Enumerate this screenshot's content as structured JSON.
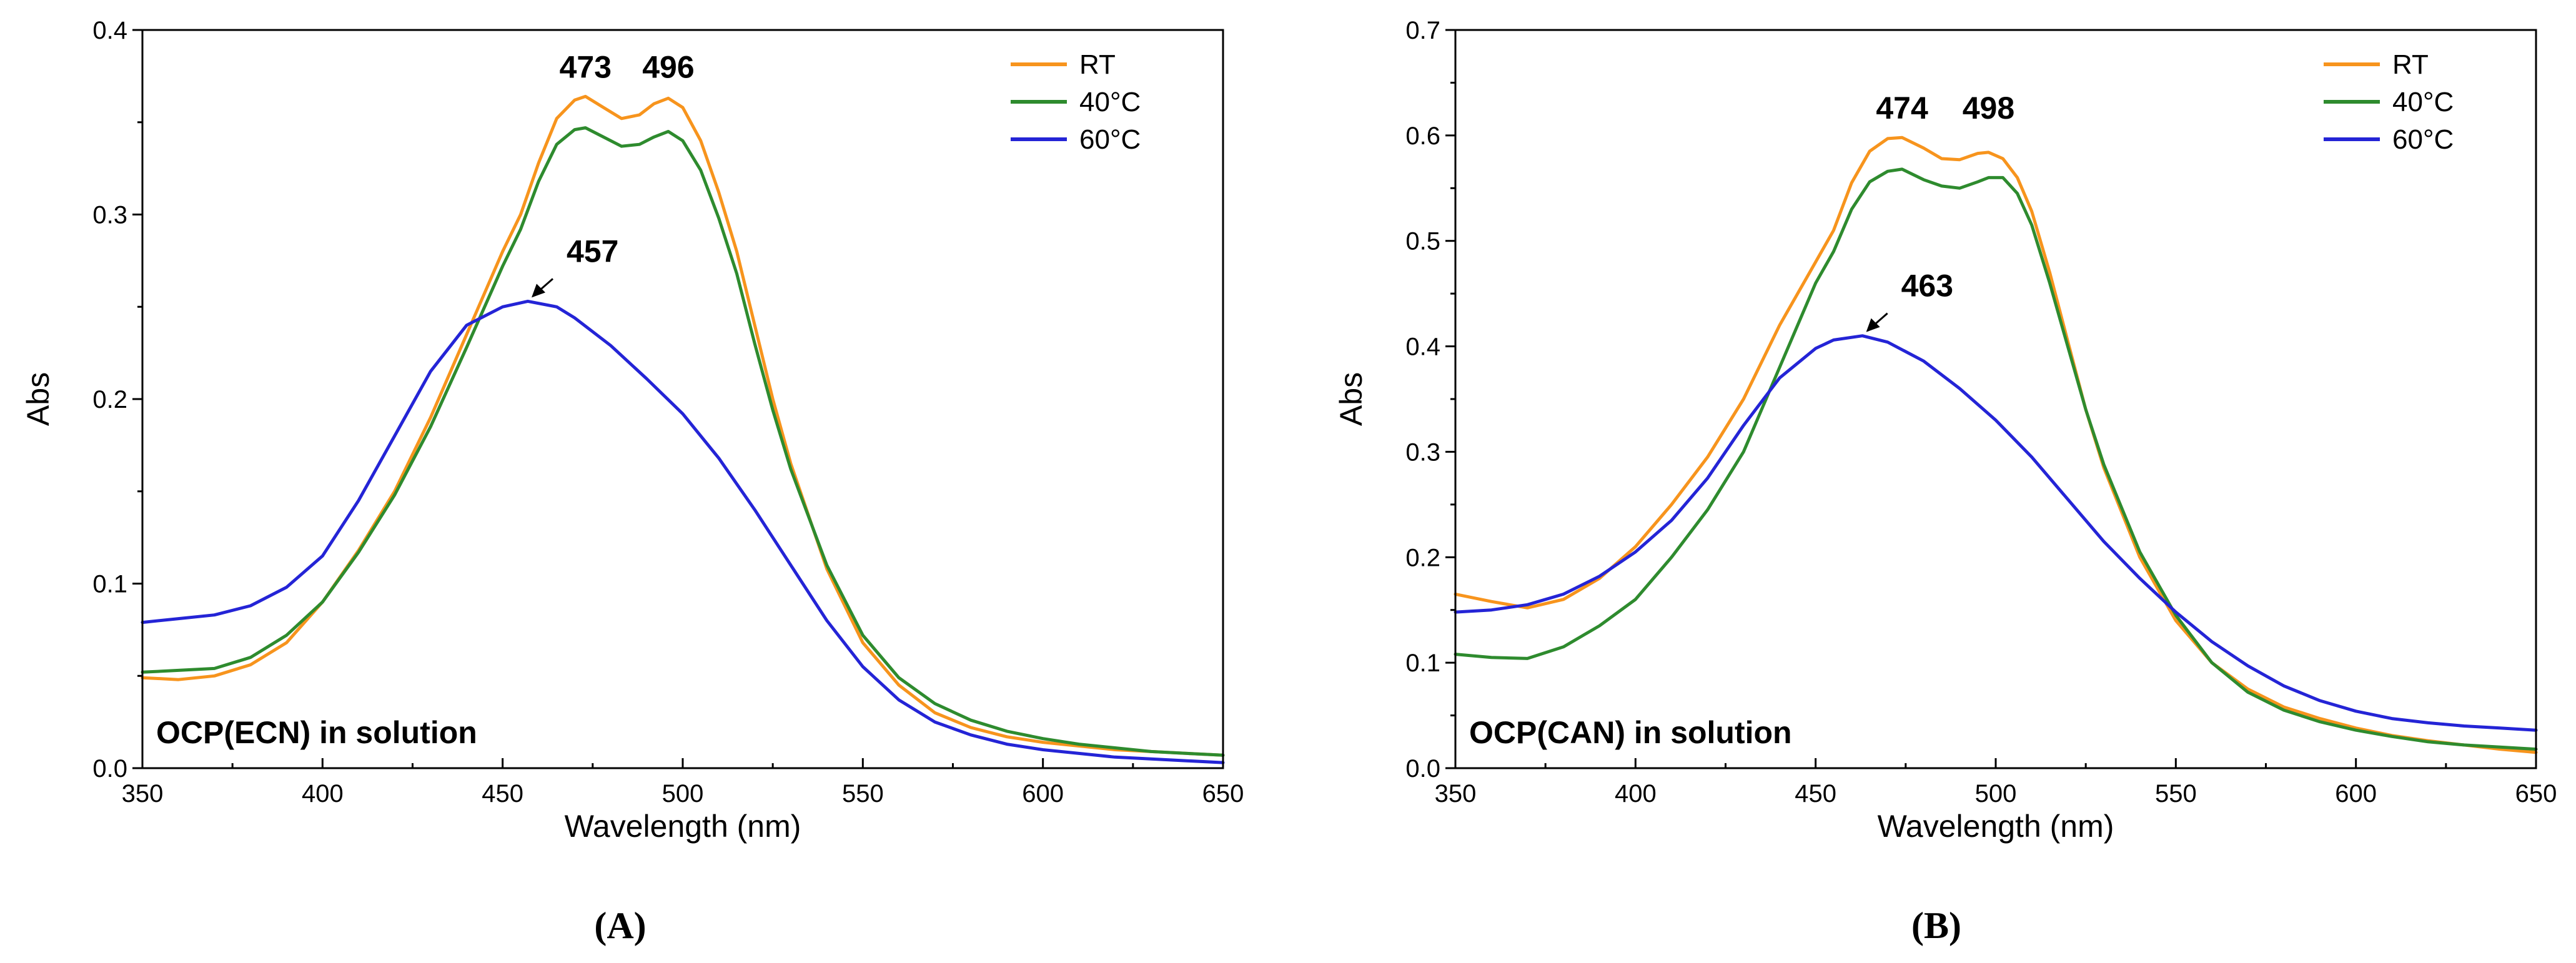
{
  "figure": {
    "panel_a_label": "(A)",
    "panel_b_label": "(B)"
  },
  "colors": {
    "RT": "#F7941D",
    "40C": "#2E8B2E",
    "60C": "#2424D6"
  },
  "chart_data": [
    {
      "type": "line",
      "panel": "A",
      "title": "",
      "xlabel": "Wavelength (nm)",
      "ylabel": "Abs",
      "xlim": [
        350,
        650
      ],
      "ylim": [
        0.0,
        0.4
      ],
      "xticks": [
        350,
        400,
        450,
        500,
        550,
        600,
        650
      ],
      "xtick_labels": [
        "350",
        "400",
        "450",
        "500",
        "550",
        "600",
        "650"
      ],
      "yticks": [
        0.0,
        0.1,
        0.2,
        0.3,
        0.4
      ],
      "ytick_labels": [
        "0.0",
        "0.1",
        "0.2",
        "0.3",
        "0.4"
      ],
      "ytick_minor": [
        0.05,
        0.15,
        0.25,
        0.35
      ],
      "xtick_minor": [
        375,
        425,
        475,
        525,
        575,
        625
      ],
      "legend_position": "top-right",
      "inset_label": "OCP(ECN) in solution",
      "annotations": [
        {
          "text": "473",
          "x": 473,
          "y": 0.364,
          "arrow": false
        },
        {
          "text": "496",
          "x": 496,
          "y": 0.364,
          "arrow": false
        },
        {
          "text": "457",
          "x": 457,
          "y": 0.253,
          "arrow": true
        }
      ],
      "series": [
        {
          "name": "RT",
          "color": "#F7941D",
          "x": [
            350,
            360,
            370,
            380,
            390,
            400,
            410,
            420,
            430,
            440,
            450,
            455,
            460,
            465,
            470,
            473,
            478,
            483,
            488,
            492,
            496,
            500,
            505,
            510,
            515,
            520,
            525,
            530,
            540,
            550,
            560,
            570,
            580,
            590,
            600,
            610,
            620,
            630,
            640,
            650
          ],
          "values": [
            0.049,
            0.048,
            0.05,
            0.056,
            0.068,
            0.09,
            0.118,
            0.15,
            0.19,
            0.235,
            0.28,
            0.3,
            0.328,
            0.352,
            0.362,
            0.364,
            0.358,
            0.352,
            0.354,
            0.36,
            0.363,
            0.358,
            0.34,
            0.312,
            0.28,
            0.24,
            0.2,
            0.165,
            0.108,
            0.068,
            0.045,
            0.03,
            0.022,
            0.017,
            0.014,
            0.012,
            0.01,
            0.009,
            0.008,
            0.007
          ]
        },
        {
          "name": "40°C",
          "color": "#2E8B2E",
          "x": [
            350,
            360,
            370,
            380,
            390,
            400,
            410,
            420,
            430,
            440,
            450,
            455,
            460,
            465,
            470,
            473,
            478,
            483,
            488,
            492,
            496,
            500,
            505,
            510,
            515,
            520,
            525,
            530,
            540,
            550,
            560,
            570,
            580,
            590,
            600,
            610,
            620,
            630,
            640,
            650
          ],
          "values": [
            0.052,
            0.053,
            0.054,
            0.06,
            0.072,
            0.09,
            0.117,
            0.148,
            0.185,
            0.228,
            0.272,
            0.292,
            0.318,
            0.338,
            0.346,
            0.347,
            0.342,
            0.337,
            0.338,
            0.342,
            0.345,
            0.34,
            0.324,
            0.298,
            0.268,
            0.23,
            0.194,
            0.162,
            0.11,
            0.072,
            0.049,
            0.035,
            0.026,
            0.02,
            0.016,
            0.013,
            0.011,
            0.009,
            0.008,
            0.007
          ]
        },
        {
          "name": "60°C",
          "color": "#2424D6",
          "x": [
            350,
            360,
            370,
            380,
            390,
            400,
            410,
            420,
            430,
            440,
            450,
            457,
            465,
            470,
            480,
            490,
            500,
            510,
            520,
            530,
            540,
            550,
            560,
            570,
            580,
            590,
            600,
            610,
            620,
            630,
            640,
            650
          ],
          "values": [
            0.079,
            0.081,
            0.083,
            0.088,
            0.098,
            0.115,
            0.145,
            0.18,
            0.215,
            0.24,
            0.25,
            0.253,
            0.25,
            0.244,
            0.229,
            0.211,
            0.192,
            0.168,
            0.14,
            0.11,
            0.08,
            0.055,
            0.037,
            0.025,
            0.018,
            0.013,
            0.01,
            0.008,
            0.006,
            0.005,
            0.004,
            0.003
          ]
        }
      ]
    },
    {
      "type": "line",
      "panel": "B",
      "title": "",
      "xlabel": "Wavelength (nm)",
      "ylabel": "Abs",
      "xlim": [
        350,
        650
      ],
      "ylim": [
        0.0,
        0.7
      ],
      "xticks": [
        350,
        400,
        450,
        500,
        550,
        600,
        650
      ],
      "xtick_labels": [
        "350",
        "400",
        "450",
        "500",
        "550",
        "600",
        "650"
      ],
      "yticks": [
        0.0,
        0.1,
        0.2,
        0.3,
        0.4,
        0.5,
        0.6,
        0.7
      ],
      "ytick_labels": [
        "0.0",
        "0.1",
        "0.2",
        "0.3",
        "0.4",
        "0.5",
        "0.6",
        "0.7"
      ],
      "ytick_minor": [
        0.05,
        0.15,
        0.25,
        0.35,
        0.45,
        0.55,
        0.65
      ],
      "xtick_minor": [
        375,
        425,
        475,
        525,
        575,
        625
      ],
      "legend_position": "top-right",
      "inset_label": "OCP(CAN) in solution",
      "annotations": [
        {
          "text": "474",
          "x": 474,
          "y": 0.598,
          "arrow": false
        },
        {
          "text": "498",
          "x": 498,
          "y": 0.598,
          "arrow": false
        },
        {
          "text": "463",
          "x": 463,
          "y": 0.41,
          "arrow": true
        }
      ],
      "series": [
        {
          "name": "RT",
          "color": "#F7941D",
          "x": [
            350,
            360,
            370,
            380,
            390,
            400,
            410,
            420,
            430,
            440,
            450,
            455,
            460,
            465,
            470,
            474,
            480,
            485,
            490,
            495,
            498,
            502,
            506,
            510,
            515,
            520,
            525,
            530,
            540,
            550,
            560,
            570,
            580,
            590,
            600,
            610,
            620,
            630,
            640,
            650
          ],
          "values": [
            0.165,
            0.158,
            0.152,
            0.16,
            0.18,
            0.21,
            0.25,
            0.295,
            0.35,
            0.42,
            0.48,
            0.51,
            0.555,
            0.585,
            0.597,
            0.598,
            0.588,
            0.578,
            0.577,
            0.583,
            0.584,
            0.578,
            0.56,
            0.528,
            0.47,
            0.405,
            0.34,
            0.285,
            0.2,
            0.14,
            0.1,
            0.075,
            0.058,
            0.047,
            0.038,
            0.031,
            0.026,
            0.022,
            0.018,
            0.015
          ]
        },
        {
          "name": "40°C",
          "color": "#2E8B2E",
          "x": [
            350,
            360,
            370,
            380,
            390,
            400,
            410,
            420,
            430,
            440,
            450,
            455,
            460,
            465,
            470,
            474,
            480,
            485,
            490,
            495,
            498,
            502,
            506,
            510,
            515,
            520,
            525,
            530,
            540,
            550,
            560,
            570,
            580,
            590,
            600,
            610,
            620,
            630,
            640,
            650
          ],
          "values": [
            0.108,
            0.105,
            0.104,
            0.115,
            0.135,
            0.16,
            0.2,
            0.245,
            0.3,
            0.38,
            0.46,
            0.49,
            0.53,
            0.556,
            0.566,
            0.568,
            0.558,
            0.552,
            0.55,
            0.556,
            0.56,
            0.56,
            0.545,
            0.515,
            0.46,
            0.4,
            0.34,
            0.288,
            0.205,
            0.145,
            0.1,
            0.072,
            0.055,
            0.044,
            0.036,
            0.03,
            0.025,
            0.022,
            0.02,
            0.018
          ]
        },
        {
          "name": "60°C",
          "color": "#2424D6",
          "x": [
            350,
            360,
            370,
            380,
            390,
            400,
            410,
            420,
            430,
            440,
            450,
            455,
            463,
            470,
            480,
            490,
            500,
            510,
            520,
            530,
            540,
            550,
            560,
            570,
            580,
            590,
            600,
            610,
            620,
            630,
            640,
            650
          ],
          "values": [
            0.148,
            0.15,
            0.155,
            0.165,
            0.182,
            0.205,
            0.235,
            0.275,
            0.325,
            0.37,
            0.398,
            0.406,
            0.41,
            0.404,
            0.386,
            0.36,
            0.33,
            0.295,
            0.255,
            0.215,
            0.18,
            0.148,
            0.12,
            0.097,
            0.078,
            0.064,
            0.054,
            0.047,
            0.043,
            0.04,
            0.038,
            0.036
          ]
        }
      ]
    }
  ]
}
